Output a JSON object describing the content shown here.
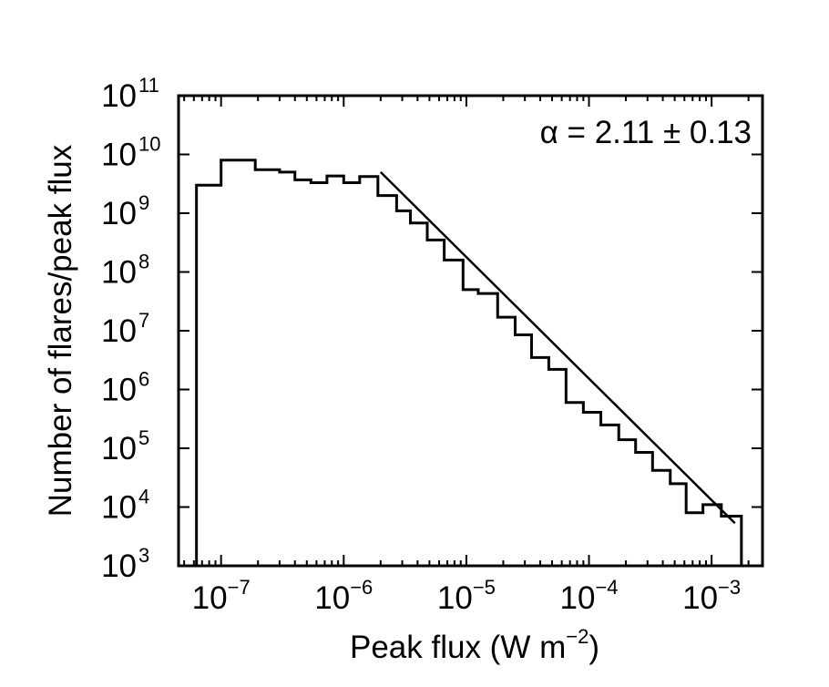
{
  "chart_data": {
    "type": "line",
    "subtype": "step-histogram",
    "title": "",
    "xlabel": "Peak flux (W m",
    "xlabel_exp": "−2",
    "xlabel_close": ")",
    "ylabel": "Number of flares/peak flux",
    "xscale": "log",
    "yscale": "log",
    "xlim": [
      4.5e-08,
      0.0026
    ],
    "ylim": [
      1000.0,
      100000000000.0
    ],
    "grid": false,
    "legend": "none",
    "x_ticks": [
      {
        "base": "10",
        "exp": "−7",
        "value": 1e-07
      },
      {
        "base": "10",
        "exp": "−6",
        "value": 1e-06
      },
      {
        "base": "10",
        "exp": "−5",
        "value": 1e-05
      },
      {
        "base": "10",
        "exp": "−4",
        "value": 0.0001
      },
      {
        "base": "10",
        "exp": "−3",
        "value": 0.001
      }
    ],
    "y_ticks": [
      {
        "base": "10",
        "exp": "3",
        "value": 1000.0
      },
      {
        "base": "10",
        "exp": "4",
        "value": 10000.0
      },
      {
        "base": "10",
        "exp": "5",
        "value": 100000.0
      },
      {
        "base": "10",
        "exp": "6",
        "value": 1000000.0
      },
      {
        "base": "10",
        "exp": "7",
        "value": 10000000.0
      },
      {
        "base": "10",
        "exp": "8",
        "value": 100000000.0
      },
      {
        "base": "10",
        "exp": "9",
        "value": 1000000000.0
      },
      {
        "base": "10",
        "exp": "10",
        "value": 10000000000.0
      },
      {
        "base": "10",
        "exp": "11",
        "value": 100000000000.0
      }
    ],
    "annotation": "α = 2.11 ± 0.13",
    "series": [
      {
        "type": "step",
        "color": "#000000",
        "bin_edges": [
          6.3e-08,
          1e-07,
          1.9e-07,
          3e-07,
          4e-07,
          5.4e-07,
          7.3e-07,
          1e-06,
          1.35e-06,
          1.9e-06,
          2.7e-06,
          3.5e-06,
          4.8e-06,
          6.6e-06,
          9.4e-06,
          1.25e-05,
          1.8e-05,
          2.5e-05,
          3.4e-05,
          4.7e-05,
          6.5e-05,
          9e-05,
          0.000125,
          0.000175,
          0.00024,
          0.00033,
          0.00046,
          0.00062,
          0.00085,
          0.0012,
          0.00175
        ],
        "values": [
          3000000000.0,
          8000000000.0,
          5500000000.0,
          5000000000.0,
          3700000000.0,
          3300000000.0,
          4300000000.0,
          3300000000.0,
          4200000000.0,
          2000000000.0,
          1100000000.0,
          680000000.0,
          350000000.0,
          160000000.0,
          50000000.0,
          43000000.0,
          17000000.0,
          8500000.0,
          3500000.0,
          2200000.0,
          600000.0,
          410000.0,
          250000.0,
          140000.0,
          85000.0,
          42000.0,
          25000.0,
          8000.0,
          11000.0,
          7000.0
        ],
        "closed_to_axis": true
      },
      {
        "type": "line",
        "name": "",
        "color": "#000000",
        "x": [
          2e-06,
          0.00155
        ],
        "y": [
          5000000000.0,
          5300.0
        ]
      }
    ]
  }
}
